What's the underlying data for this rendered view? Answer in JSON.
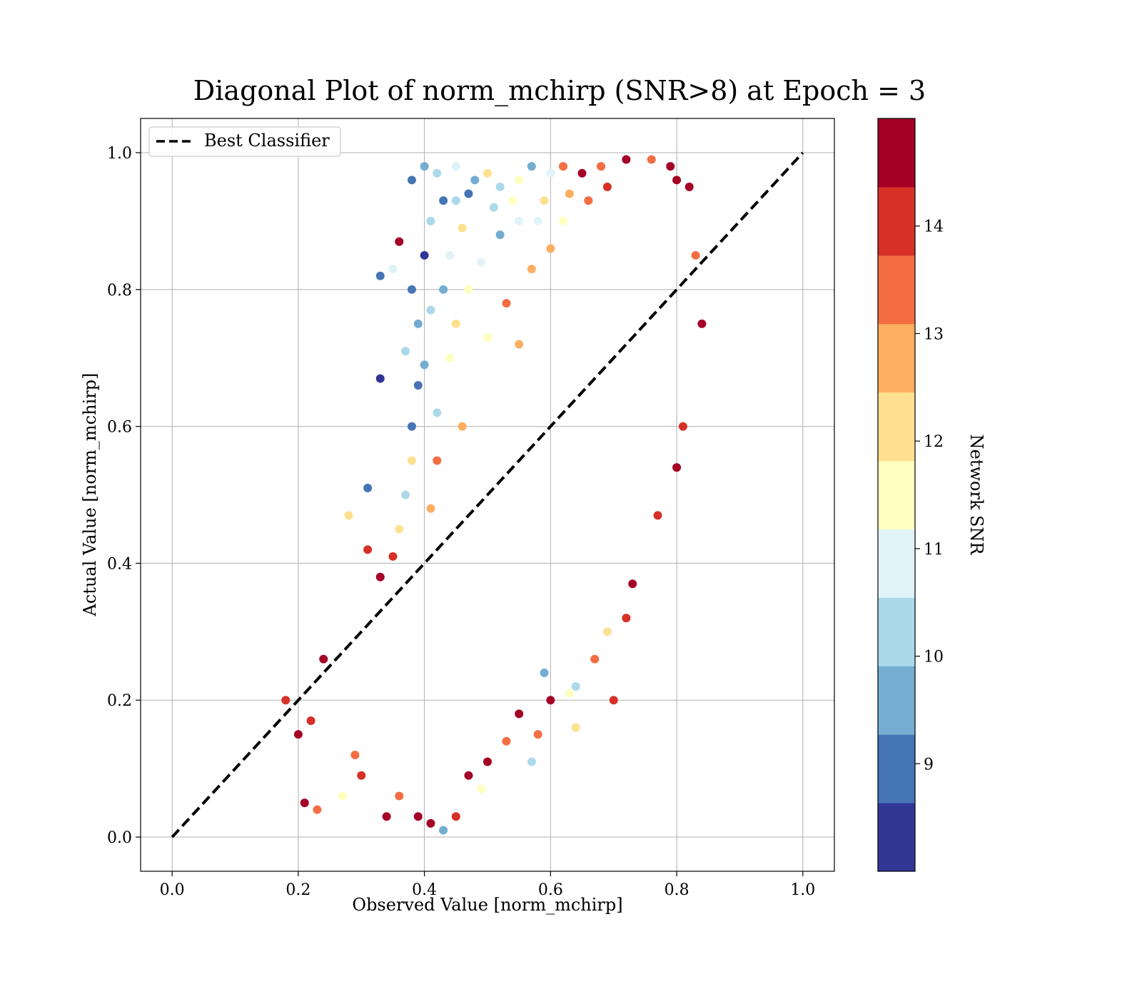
{
  "chart_data": {
    "type": "scatter",
    "title": "Diagonal Plot of norm_mchirp (SNR>8) at Epoch = 3",
    "xlabel": "Observed Value [norm_mchirp]",
    "ylabel": "Actual Value [norm_mchirp]",
    "xlim": [
      -0.05,
      1.05
    ],
    "ylim": [
      -0.05,
      1.05
    ],
    "xticks": [
      "0.0",
      "0.2",
      "0.4",
      "0.6",
      "0.8",
      "1.0"
    ],
    "yticks": [
      "0.0",
      "0.2",
      "0.4",
      "0.6",
      "0.8",
      "1.0"
    ],
    "grid": true,
    "legend": {
      "placement": "upper-left",
      "entries": [
        "Best Classifier"
      ]
    },
    "reference_line": {
      "name": "Best Classifier",
      "x": [
        0.0,
        1.0
      ],
      "y": [
        0.0,
        1.0
      ],
      "style": "dashed",
      "color": "#000000"
    },
    "colorbar": {
      "label": "Network SNR",
      "range": [
        8,
        15
      ],
      "ticks": [
        "9",
        "10",
        "11",
        "12",
        "13",
        "14"
      ],
      "colors": [
        "#313695",
        "#4575b4",
        "#74add1",
        "#abd9e9",
        "#e0f3f8",
        "#ffffbf",
        "#fee090",
        "#fdae61",
        "#f46d43",
        "#d73027",
        "#a50026"
      ]
    },
    "points": [
      [
        0.18,
        0.2,
        14.2
      ],
      [
        0.2,
        0.15,
        14.8
      ],
      [
        0.22,
        0.17,
        13.9
      ],
      [
        0.24,
        0.26,
        14.6
      ],
      [
        0.21,
        0.05,
        14.8
      ],
      [
        0.23,
        0.04,
        13.2
      ],
      [
        0.27,
        0.06,
        11.2
      ],
      [
        0.28,
        0.47,
        12.2
      ],
      [
        0.31,
        0.42,
        14.3
      ],
      [
        0.31,
        0.51,
        9.1
      ],
      [
        0.33,
        0.67,
        8.5
      ],
      [
        0.33,
        0.82,
        9.1
      ],
      [
        0.35,
        0.83,
        10.6
      ],
      [
        0.36,
        0.87,
        14.8
      ],
      [
        0.37,
        0.71,
        10.2
      ],
      [
        0.38,
        0.96,
        8.9
      ],
      [
        0.4,
        0.98,
        9.6
      ],
      [
        0.42,
        0.97,
        10.5
      ],
      [
        0.45,
        0.98,
        10.8
      ],
      [
        0.48,
        0.96,
        9.4
      ],
      [
        0.5,
        0.97,
        12.4
      ],
      [
        0.52,
        0.95,
        10.1
      ],
      [
        0.55,
        0.96,
        11.4
      ],
      [
        0.57,
        0.98,
        9.7
      ],
      [
        0.6,
        0.97,
        10.9
      ],
      [
        0.62,
        0.98,
        13.4
      ],
      [
        0.65,
        0.97,
        14.7
      ],
      [
        0.68,
        0.98,
        13.2
      ],
      [
        0.72,
        0.99,
        14.6
      ],
      [
        0.76,
        0.99,
        13.7
      ],
      [
        0.79,
        0.98,
        14.8
      ],
      [
        0.8,
        0.96,
        14.9
      ],
      [
        0.82,
        0.95,
        14.5
      ],
      [
        0.83,
        0.85,
        13.1
      ],
      [
        0.84,
        0.75,
        14.9
      ],
      [
        0.81,
        0.6,
        14.2
      ],
      [
        0.8,
        0.54,
        14.8
      ],
      [
        0.77,
        0.47,
        14.2
      ],
      [
        0.73,
        0.37,
        14.6
      ],
      [
        0.72,
        0.32,
        13.8
      ],
      [
        0.69,
        0.3,
        12.1
      ],
      [
        0.67,
        0.26,
        13.4
      ],
      [
        0.64,
        0.22,
        10.3
      ],
      [
        0.64,
        0.16,
        12.0
      ],
      [
        0.63,
        0.21,
        11.7
      ],
      [
        0.7,
        0.2,
        14.1
      ],
      [
        0.6,
        0.2,
        14.9
      ],
      [
        0.59,
        0.24,
        9.4
      ],
      [
        0.58,
        0.15,
        13.6
      ],
      [
        0.57,
        0.11,
        10.0
      ],
      [
        0.55,
        0.18,
        14.4
      ],
      [
        0.53,
        0.14,
        13.2
      ],
      [
        0.5,
        0.11,
        14.8
      ],
      [
        0.49,
        0.07,
        11.3
      ],
      [
        0.47,
        0.09,
        14.6
      ],
      [
        0.45,
        0.03,
        13.9
      ],
      [
        0.43,
        0.01,
        9.8
      ],
      [
        0.41,
        0.02,
        14.7
      ],
      [
        0.39,
        0.03,
        14.8
      ],
      [
        0.36,
        0.06,
        13.5
      ],
      [
        0.34,
        0.03,
        14.6
      ],
      [
        0.3,
        0.09,
        14.2
      ],
      [
        0.29,
        0.12,
        13.3
      ],
      [
        0.33,
        0.38,
        14.5
      ],
      [
        0.35,
        0.41,
        14.1
      ],
      [
        0.36,
        0.45,
        11.9
      ],
      [
        0.37,
        0.5,
        10.2
      ],
      [
        0.38,
        0.55,
        12.0
      ],
      [
        0.38,
        0.6,
        9.2
      ],
      [
        0.39,
        0.66,
        8.7
      ],
      [
        0.39,
        0.75,
        9.3
      ],
      [
        0.38,
        0.8,
        8.9
      ],
      [
        0.4,
        0.85,
        8.6
      ],
      [
        0.41,
        0.9,
        10.4
      ],
      [
        0.43,
        0.93,
        9.1
      ],
      [
        0.44,
        0.85,
        10.8
      ],
      [
        0.46,
        0.89,
        12.1
      ],
      [
        0.47,
        0.8,
        11.7
      ],
      [
        0.49,
        0.84,
        10.6
      ],
      [
        0.52,
        0.88,
        9.5
      ],
      [
        0.55,
        0.9,
        11.1
      ],
      [
        0.57,
        0.83,
        12.6
      ],
      [
        0.58,
        0.9,
        10.7
      ],
      [
        0.6,
        0.86,
        12.9
      ],
      [
        0.62,
        0.9,
        11.8
      ],
      [
        0.44,
        0.7,
        11.6
      ],
      [
        0.42,
        0.62,
        10.3
      ],
      [
        0.45,
        0.75,
        12.3
      ],
      [
        0.5,
        0.73,
        11.2
      ],
      [
        0.53,
        0.78,
        13.1
      ],
      [
        0.55,
        0.72,
        12.7
      ],
      [
        0.46,
        0.6,
        12.9
      ],
      [
        0.42,
        0.55,
        13.3
      ],
      [
        0.41,
        0.48,
        12.8
      ],
      [
        0.4,
        0.69,
        9.9
      ],
      [
        0.41,
        0.77,
        10.1
      ],
      [
        0.43,
        0.8,
        9.6
      ],
      [
        0.45,
        0.93,
        10.0
      ],
      [
        0.47,
        0.94,
        9.2
      ],
      [
        0.51,
        0.92,
        10.3
      ],
      [
        0.54,
        0.93,
        11.5
      ],
      [
        0.59,
        0.93,
        12.2
      ],
      [
        0.63,
        0.94,
        12.5
      ],
      [
        0.66,
        0.93,
        13.6
      ],
      [
        0.69,
        0.95,
        14.2
      ]
    ]
  }
}
